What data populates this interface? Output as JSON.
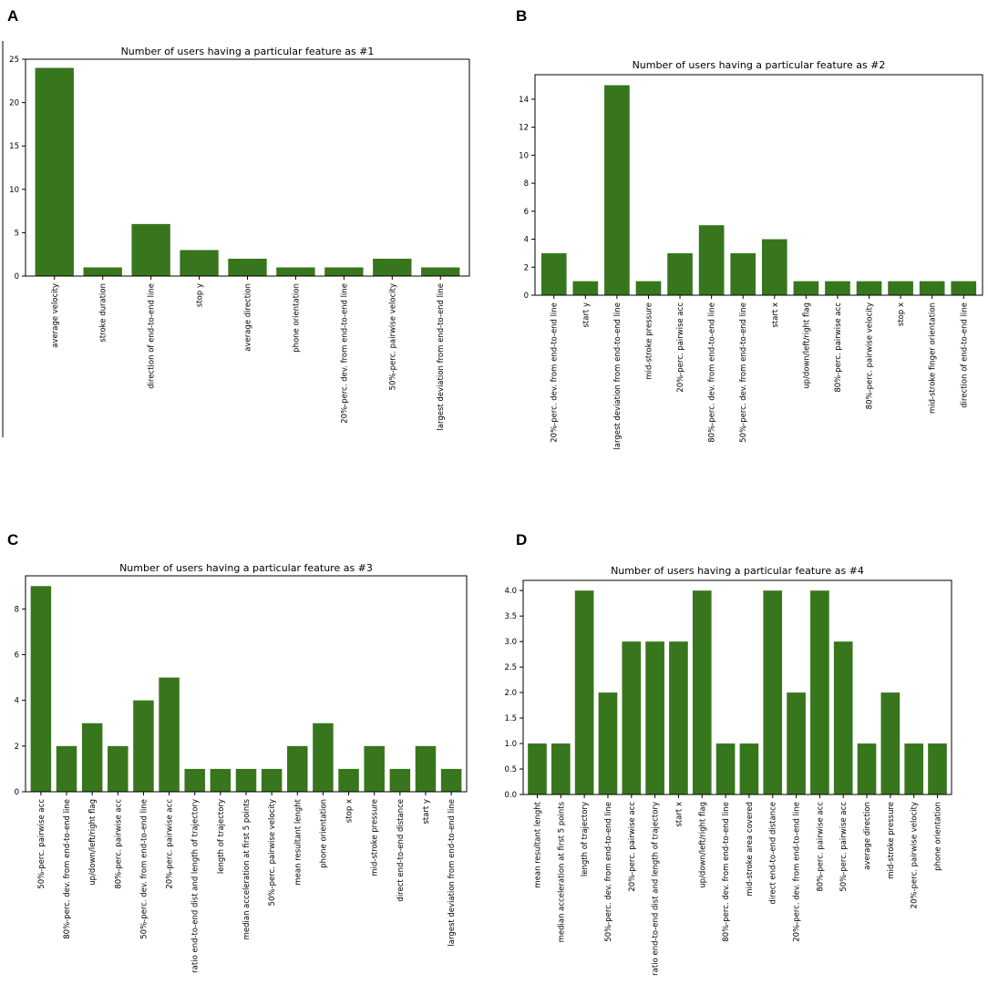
{
  "colors": {
    "bar": "#38761d",
    "text": "#000000",
    "background": "#ffffff"
  },
  "chart_data": [
    {
      "label": "A",
      "type": "bar",
      "title": "Number of users having a particular feature as #1",
      "xlabel": "",
      "ylabel": "",
      "ylim": [
        0,
        25
      ],
      "yticks": [
        0,
        5,
        10,
        15,
        20,
        25
      ],
      "ytick_labels": [
        "0",
        "5",
        "10",
        "15",
        "20",
        "25"
      ],
      "categories": [
        "average velocity",
        "stroke duration",
        "direction of end-to-end line",
        "stop y",
        "average direction",
        "phone orientation",
        "20%-perc. dev. from end-to-end line",
        "50%-perc. pairwise velocity",
        "largest deviation from end-to-end line"
      ],
      "values": [
        24,
        1,
        6,
        3,
        2,
        1,
        1,
        2,
        1
      ]
    },
    {
      "label": "B",
      "type": "bar",
      "title": "Number of users having a particular feature as #2",
      "xlabel": "",
      "ylabel": "",
      "ylim": [
        0,
        15.75
      ],
      "yticks": [
        0,
        2,
        4,
        6,
        8,
        10,
        12,
        14
      ],
      "ytick_labels": [
        "0",
        "2",
        "4",
        "6",
        "8",
        "10",
        "12",
        "14"
      ],
      "categories": [
        "20%-perc. dev. from end-to-end line",
        "start y",
        "largest deviation from end-to-end line",
        "mid-stroke pressure",
        "20%-perc. pairwise acc",
        "80%-perc. dev. from end-to-end line",
        "50%-perc. dev. from end-to-end line",
        "start x",
        "up/down/left/right flag",
        "80%-perc. pairwise acc",
        "80%-perc. pairwise velocity",
        "stop x",
        "mid-stroke finger orientation",
        "direction of end-to-end line"
      ],
      "values": [
        3,
        1,
        15,
        1,
        3,
        5,
        3,
        4,
        1,
        1,
        1,
        1,
        1,
        1
      ]
    },
    {
      "label": "C",
      "type": "bar",
      "title": "Number of users having a particular feature as #3",
      "xlabel": "",
      "ylabel": "",
      "ylim": [
        0,
        9.45
      ],
      "yticks": [
        0,
        2,
        4,
        6,
        8
      ],
      "ytick_labels": [
        "0",
        "2",
        "4",
        "6",
        "8"
      ],
      "categories": [
        "50%-perc. pairwise acc",
        "80%-perc. dev. from end-to-end line",
        "up/down/left/right flag",
        "80%-perc. pairwise acc",
        "50%-perc. dev. from end-to-end line",
        "20%-perc. pairwise acc",
        "ratio end-to-end dist and length of trajectory",
        "length of trajectory",
        "median acceleration at first 5 points",
        "50%-perc. pairwise velocity",
        "mean resultant lenght",
        "phone orientation",
        "stop x",
        "mid-stroke pressure",
        "direct end-to-end distance",
        "start y",
        "largest deviation from end-to-end line"
      ],
      "values": [
        9,
        2,
        3,
        2,
        4,
        5,
        1,
        1,
        1,
        1,
        2,
        3,
        1,
        2,
        1,
        2,
        1
      ]
    },
    {
      "label": "D",
      "type": "bar",
      "title": "Number of users having a particular feature as #4",
      "xlabel": "",
      "ylabel": "",
      "ylim": [
        0,
        4.2
      ],
      "yticks": [
        0,
        0.5,
        1,
        1.5,
        2,
        2.5,
        3,
        3.5,
        4
      ],
      "ytick_labels": [
        "0.0",
        "0.5",
        "1.0",
        "1.5",
        "2.0",
        "2.5",
        "3.0",
        "3.5",
        "4.0"
      ],
      "categories": [
        "mean resultant lenght",
        "median acceleration at first 5 points",
        "length of trajectory",
        "50%-perc. dev. from end-to-end line",
        "20%-perc. pairwise acc",
        "ratio end-to-end dist and length of trajectory",
        "start x",
        "up/down/left/right flag",
        "80%-perc. dev. from end-to-end line",
        "mid-stroke area covered",
        "direct end-to-end distance",
        "20%-perc. dev. from end-to-end line",
        "80%-perc. pairwise acc",
        "50%-perc. pairwise acc",
        "average direction",
        "mid-stroke pressure",
        "20%-perc. pairwise velocity",
        "phone orientation"
      ],
      "values": [
        1,
        1,
        4,
        2,
        3,
        3,
        3,
        4,
        1,
        1,
        4,
        2,
        4,
        3,
        1,
        2,
        1,
        1
      ]
    }
  ]
}
